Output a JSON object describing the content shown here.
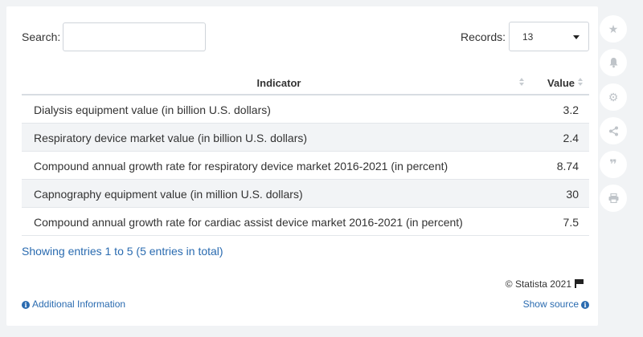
{
  "search": {
    "label": "Search:",
    "value": "",
    "placeholder": ""
  },
  "records": {
    "label": "Records:",
    "selected": "13"
  },
  "table": {
    "headers": {
      "indicator": "Indicator",
      "value": "Value"
    },
    "rows": [
      {
        "indicator": "Dialysis equipment value (in billion U.S. dollars)",
        "value": "3.2"
      },
      {
        "indicator": "Respiratory device market value (in billion U.S. dollars)",
        "value": "2.4"
      },
      {
        "indicator": "Compound annual growth rate for respiratory device market 2016-2021 (in percent)",
        "value": "8.74"
      },
      {
        "indicator": "Capnography equipment value (in million U.S. dollars)",
        "value": "30"
      },
      {
        "indicator": "Compound annual growth rate for cardiac assist device market 2016-2021 (in percent)",
        "value": "7.5"
      }
    ]
  },
  "footer": {
    "entries": "Showing entries 1 to 5 (5 entries in total)",
    "copyright": "© Statista 2021",
    "additional_info": "Additional Information",
    "show_source": "Show source"
  },
  "sidebar": {
    "buttons": [
      {
        "icon": "star-icon",
        "glyph": "★"
      },
      {
        "icon": "bell-icon",
        "glyph": "🔔"
      },
      {
        "icon": "gear-icon",
        "glyph": "⚙"
      },
      {
        "icon": "share-icon",
        "glyph": "⋖"
      },
      {
        "icon": "quote-icon",
        "glyph": "❞"
      },
      {
        "icon": "print-icon",
        "glyph": "⎙"
      }
    ]
  },
  "colors": {
    "link": "#2a6bb0",
    "row_alt": "#f2f4f6",
    "background": "#f1f3f5"
  }
}
